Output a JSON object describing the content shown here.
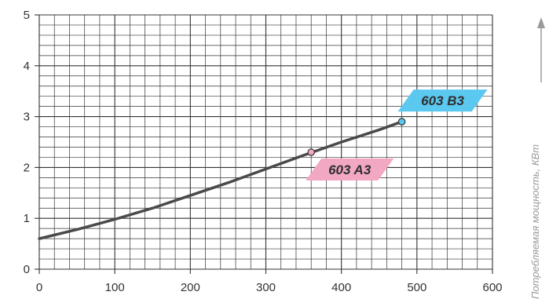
{
  "chart_data": {
    "type": "line",
    "title": "",
    "xlabel": "",
    "ylabel": "Потребляемая мощность, КВт",
    "xlim": [
      0,
      600
    ],
    "ylim": [
      0,
      5
    ],
    "x_ticks": [
      "0",
      "100",
      "200",
      "300",
      "400",
      "500",
      "600"
    ],
    "y_ticks": [
      "0",
      "1",
      "2",
      "3",
      "4",
      "5"
    ],
    "grid": true,
    "series": [
      {
        "points": [
          [
            0,
            0.6
          ],
          [
            50,
            0.78
          ],
          [
            100,
            0.98
          ],
          [
            150,
            1.2
          ],
          [
            200,
            1.45
          ],
          [
            250,
            1.7
          ],
          [
            300,
            1.97
          ],
          [
            350,
            2.24
          ],
          [
            400,
            2.5
          ],
          [
            450,
            2.74
          ],
          [
            480,
            2.9
          ]
        ]
      }
    ],
    "annotations": [
      {
        "label": "603 A3",
        "x": 360,
        "y": 2.3,
        "color": "#f2a7c3"
      },
      {
        "label": "603 B3",
        "x": 480,
        "y": 2.9,
        "color": "#5bc8f0"
      }
    ]
  },
  "colors": {
    "line": "#4a4a4a",
    "grid": "#333333",
    "axis_arrow": "#9a9a9a"
  }
}
